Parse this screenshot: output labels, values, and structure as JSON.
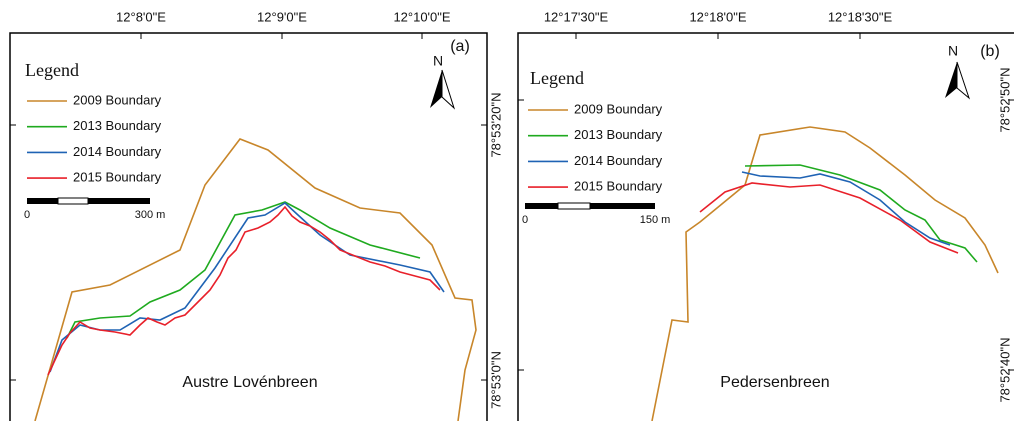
{
  "panels": [
    {
      "label": "(a)",
      "name": "Austre Lovénbreen",
      "north": "N",
      "xticks": [
        "12°8'0\"E",
        "12°9'0\"E",
        "12°10'0\"E"
      ],
      "yticks": [
        "78°53'20\"N",
        "78°53'0\"N"
      ],
      "legend": {
        "title": "Legend",
        "entries": [
          {
            "name": "2009 Boundary",
            "color": "#c8862a"
          },
          {
            "name": "2013 Boundary",
            "color": "#1faa1f"
          },
          {
            "name": "2014 Boundary",
            "color": "#1f63b4"
          },
          {
            "name": "2015 Boundary",
            "color": "#e8202a"
          }
        ]
      },
      "scale": {
        "start": "0",
        "end": "300 m"
      }
    },
    {
      "label": "(b)",
      "name": "Pedersenbreen",
      "north": "N",
      "xticks": [
        "12°17'30\"E",
        "12°18'0\"E",
        "12°18'30\"E"
      ],
      "yticks": [
        "78°52'50\"N",
        "78°52'40\"N"
      ],
      "legend": {
        "title": "Legend",
        "entries": [
          {
            "name": "2009 Boundary",
            "color": "#c8862a"
          },
          {
            "name": "2013 Boundary",
            "color": "#1faa1f"
          },
          {
            "name": "2014 Boundary",
            "color": "#1f63b4"
          },
          {
            "name": "2015 Boundary",
            "color": "#e8202a"
          }
        ]
      },
      "scale": {
        "start": "0",
        "end": "150 m"
      }
    }
  ]
}
